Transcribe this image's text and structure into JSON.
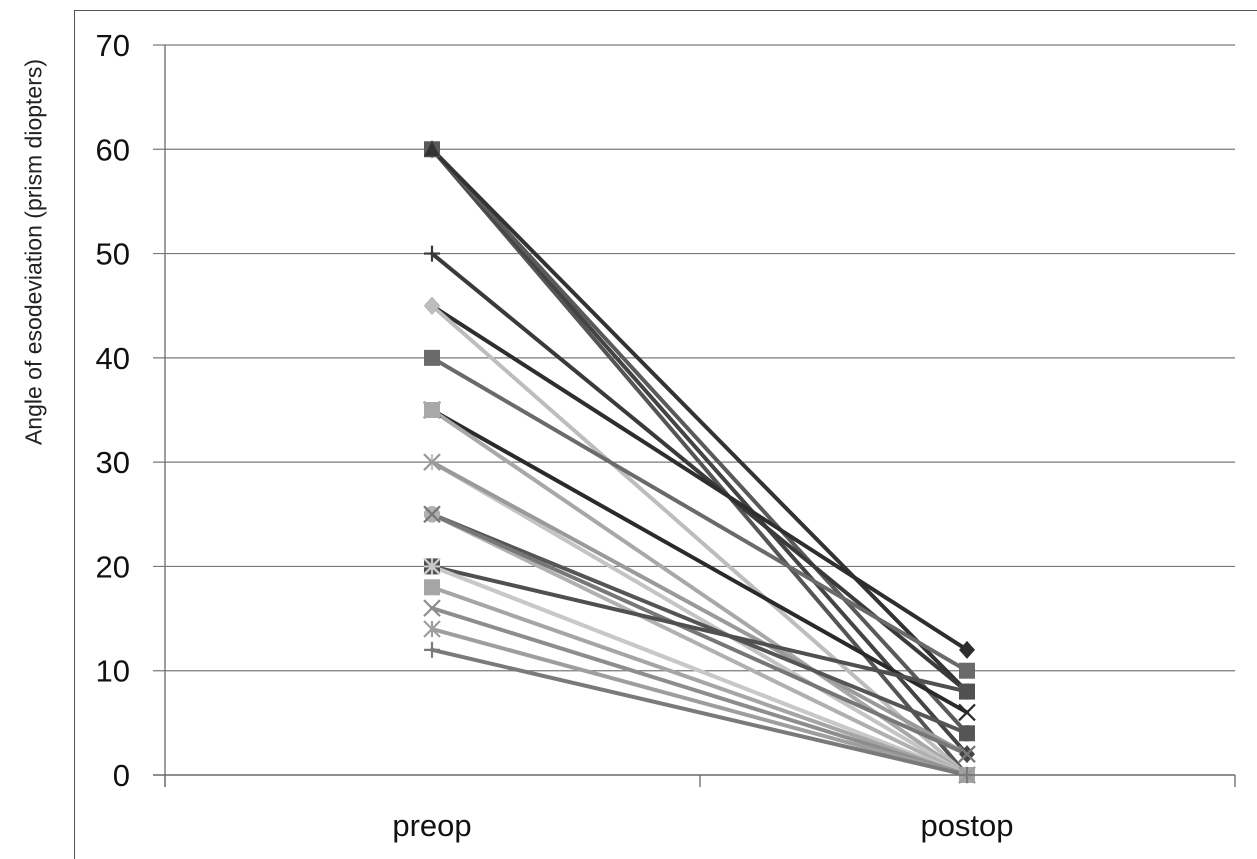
{
  "chart_data": {
    "type": "line",
    "title": "",
    "xlabel": "",
    "ylabel": "Angle of esodeviation (prism diopters)",
    "categories": [
      "preop",
      "postop"
    ],
    "ylim": [
      0,
      70
    ],
    "yticks": [
      0,
      10,
      20,
      30,
      40,
      50,
      60,
      70
    ],
    "grid": true,
    "legend": "none",
    "series": [
      {
        "values": [
          60,
          0
        ],
        "color": "#555555",
        "marker": "circle"
      },
      {
        "values": [
          60,
          2
        ],
        "color": "#444444",
        "marker": "diamond"
      },
      {
        "values": [
          60,
          4
        ],
        "color": "#5a5a5a",
        "marker": "square"
      },
      {
        "values": [
          60,
          8
        ],
        "color": "#333333",
        "marker": "triangle"
      },
      {
        "values": [
          50,
          8
        ],
        "color": "#3a3a3a",
        "marker": "plus"
      },
      {
        "values": [
          45,
          12
        ],
        "color": "#2e2e2e",
        "marker": "diamond"
      },
      {
        "values": [
          45,
          0
        ],
        "color": "#bdbdbd",
        "marker": "diamond"
      },
      {
        "values": [
          40,
          10
        ],
        "color": "#6a6a6a",
        "marker": "square"
      },
      {
        "values": [
          35,
          6
        ],
        "color": "#2a2a2a",
        "marker": "x"
      },
      {
        "values": [
          35,
          0
        ],
        "color": "#a8a8a8",
        "marker": "square"
      },
      {
        "values": [
          30,
          0
        ],
        "color": "#c4c4c4",
        "marker": "star"
      },
      {
        "values": [
          30,
          2
        ],
        "color": "#9a9a9a",
        "marker": "x"
      },
      {
        "values": [
          25,
          4
        ],
        "color": "#555555",
        "marker": "circle"
      },
      {
        "values": [
          25,
          0
        ],
        "color": "#b0b0b0",
        "marker": "circle"
      },
      {
        "values": [
          25,
          2
        ],
        "color": "#777777",
        "marker": "x"
      },
      {
        "values": [
          20,
          8
        ],
        "color": "#505050",
        "marker": "square"
      },
      {
        "values": [
          20,
          0
        ],
        "color": "#d0d0d0",
        "marker": "x"
      },
      {
        "values": [
          20,
          0
        ],
        "color": "#c8c8c8",
        "marker": "plus"
      },
      {
        "values": [
          18,
          0
        ],
        "color": "#a5a5a5",
        "marker": "square"
      },
      {
        "values": [
          16,
          0
        ],
        "color": "#8d8d8d",
        "marker": "x"
      },
      {
        "values": [
          14,
          0
        ],
        "color": "#9e9e9e",
        "marker": "star"
      },
      {
        "values": [
          12,
          0
        ],
        "color": "#7a7a7a",
        "marker": "plus"
      }
    ]
  }
}
